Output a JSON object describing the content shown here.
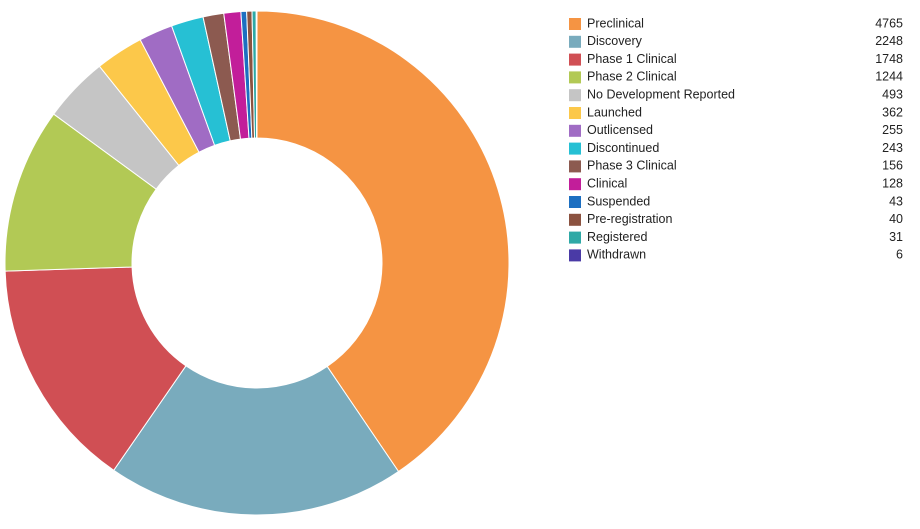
{
  "chart_data": {
    "type": "donut",
    "categories": [
      "Preclinical",
      "Discovery",
      "Phase 1 Clinical",
      "Phase 2 Clinical",
      "No Development Reported",
      "Launched",
      "Outlicensed",
      "Discontinued",
      "Phase 3 Clinical",
      "Clinical",
      "Suspended",
      "Pre-registration",
      "Registered",
      "Withdrawn"
    ],
    "values": [
      4765,
      2248,
      1748,
      1244,
      493,
      362,
      255,
      243,
      156,
      128,
      43,
      40,
      31,
      6
    ],
    "colors": [
      "#f59443",
      "#79abbd",
      "#d04f54",
      "#b2c955",
      "#c5c5c5",
      "#fcc84a",
      "#a06cc4",
      "#26c0d4",
      "#8c5a50",
      "#c21e9a",
      "#1d6fc1",
      "#8b5240",
      "#2fa9a6",
      "#4a3aa6"
    ]
  }
}
